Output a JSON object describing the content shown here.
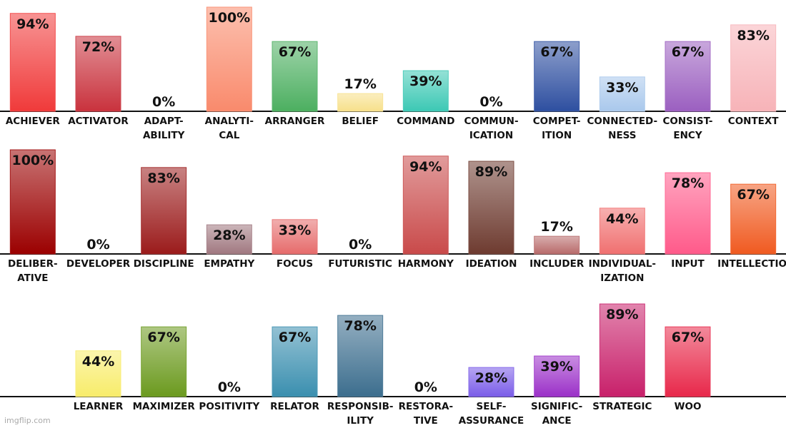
{
  "chart_data": [
    {
      "type": "bar",
      "ylim": [
        0,
        100
      ],
      "categories": [
        "ACHIEVER",
        "ACTIVATOR",
        "ADAPT-\nABILITY",
        "ANALYTI-\nCAL",
        "ARRANGER",
        "BELIEF",
        "COMMAND",
        "COMMUN-\nICATION",
        "COMPET-\nITION",
        "CONNECTED-\nNESS",
        "CONSIST-\nENCY",
        "CONTEXT"
      ],
      "values": [
        94,
        72,
        0,
        100,
        67,
        17,
        39,
        0,
        67,
        33,
        67,
        83
      ],
      "value_labels": [
        "94%",
        "72%",
        "0%",
        "100%",
        "67%",
        "17%",
        "39%",
        "0%",
        "67%",
        "33%",
        "67%",
        "83%"
      ],
      "colors": [
        "#f03a3a",
        "#c9323d",
        null,
        "#f98a6c",
        "#4caf60",
        "#f7e08a",
        "#3cc8b4",
        null,
        "#2e4fa0",
        "#a9c8ec",
        "#9b5fc0",
        "#f7b3b8"
      ]
    },
    {
      "type": "bar",
      "ylim": [
        0,
        100
      ],
      "categories": [
        "DELIBER-\nATIVE",
        "DEVELOPER",
        "DISCIPLINE",
        "EMPATHY",
        "FOCUS",
        "FUTURISTIC",
        "HARMONY",
        "IDEATION",
        "INCLUDER",
        "INDIVIDUAL-\nIZATION",
        "INPUT",
        "INTELLECTION"
      ],
      "values": [
        100,
        0,
        83,
        28,
        33,
        0,
        94,
        89,
        17,
        44,
        78,
        67
      ],
      "value_labels": [
        "100%",
        "0%",
        "83%",
        "28%",
        "33%",
        "0%",
        "94%",
        "89%",
        "17%",
        "44%",
        "78%",
        "67%"
      ],
      "colors": [
        "#9b0000",
        null,
        "#9b1b1b",
        "#a07880",
        "#e66b6b",
        null,
        "#c94a4a",
        "#6e3b30",
        "#b86a6a",
        "#f07070",
        "#ff5a8a",
        "#f05a20"
      ]
    },
    {
      "type": "bar",
      "ylim": [
        0,
        100
      ],
      "categories": [
        null,
        "LEARNER",
        "MAXIMIZER",
        "POSITIVITY",
        "RELATOR",
        "RESPONSIB-\nILITY",
        "RESTORA-\nTIVE",
        "SELF-\nASSURANCE",
        "SIGNIFIC-\nANCE",
        "STRATEGIC",
        "WOO",
        null
      ],
      "values": [
        null,
        44,
        67,
        0,
        67,
        78,
        0,
        28,
        39,
        89,
        67,
        null
      ],
      "value_labels": [
        null,
        "44%",
        "67%",
        "0%",
        "67%",
        "78%",
        "0%",
        "28%",
        "39%",
        "89%",
        "67%",
        null
      ],
      "colors": [
        null,
        "#f8ec6a",
        "#6b9a1e",
        null,
        "#3a8faf",
        "#3c6e8e",
        null,
        "#7a5ce8",
        "#9b30c8",
        "#c8206a",
        "#e8284a",
        null
      ]
    }
  ],
  "watermark": "imgflip.com"
}
